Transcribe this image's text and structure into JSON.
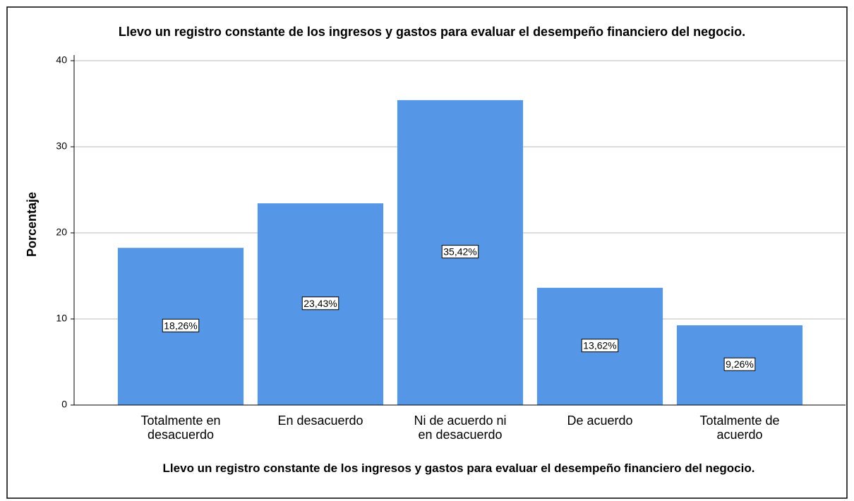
{
  "chart_data": {
    "type": "bar",
    "title": "Llevo un registro constante de los ingresos y gastos para evaluar el desempeño financiero del negocio.",
    "x_label": "Llevo un registro constante de los ingresos y gastos para evaluar el desempeño financiero del negocio.",
    "y_label": "Porcentaje",
    "categories": [
      "Totalmente en desacuerdo",
      "En desacuerdo",
      "Ni de acuerdo ni en desacuerdo",
      "De acuerdo",
      "Totalmente de acuerdo"
    ],
    "values": [
      18.26,
      23.43,
      35.42,
      13.62,
      9.26
    ],
    "value_labels": [
      "18,26%",
      "23,43%",
      "35,42%",
      "13,62%",
      "9,26%"
    ],
    "color": "#5596e6",
    "ylim": [
      0,
      40
    ],
    "yticks": [
      0,
      10,
      20,
      30,
      40
    ],
    "grid": true
  }
}
